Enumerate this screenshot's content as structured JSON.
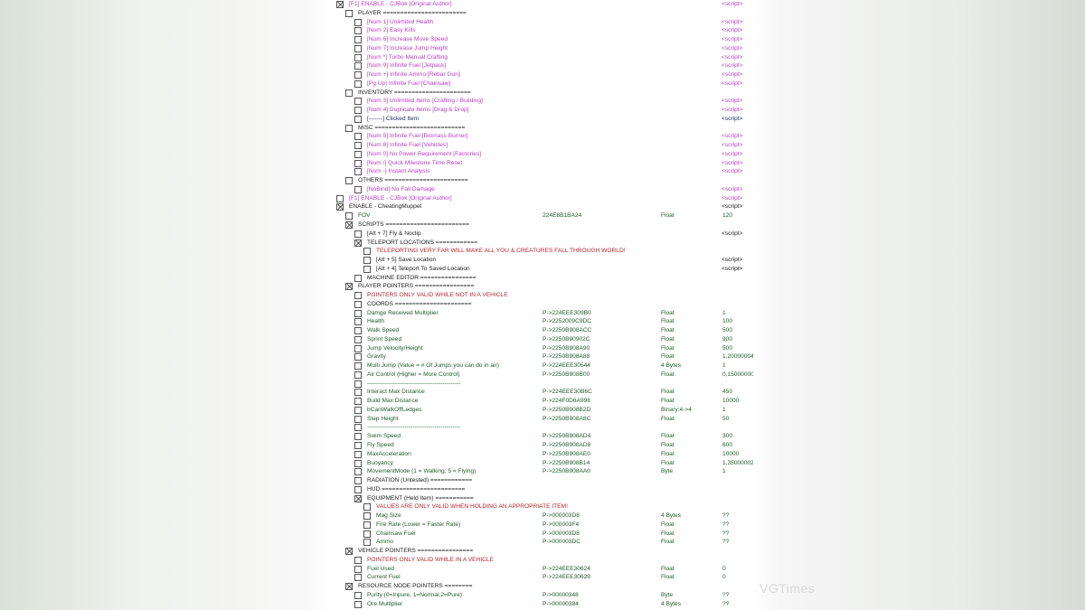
{
  "colors": {
    "purple": "#b83fc4",
    "navy": "#1d2f6e",
    "black": "#1a1a1a",
    "green": "#215a2e",
    "red": "#b3262d"
  },
  "watermark": "VGTimes",
  "rows": [
    {
      "level": 0,
      "checked": true,
      "style": "purple",
      "label": "[F1] ENABLE - CJBok [Original Author]",
      "script": "<script>"
    },
    {
      "level": 1,
      "checked": false,
      "style": "black",
      "label": "PLAYER ========================"
    },
    {
      "level": 2,
      "checked": false,
      "style": "purple",
      "label": "[Num 1] Unlimited Health",
      "script": "<script>"
    },
    {
      "level": 2,
      "checked": false,
      "style": "purple",
      "label": "[Num 2] Easy Kills",
      "script": "<script>"
    },
    {
      "level": 2,
      "checked": false,
      "style": "purple",
      "label": "[Num 6] Increase Move Speed",
      "script": "<script>"
    },
    {
      "level": 2,
      "checked": false,
      "style": "purple",
      "label": "[Num 7] Increase Jump Height",
      "script": "<script>"
    },
    {
      "level": 2,
      "checked": false,
      "style": "purple",
      "label": "[Num *] Turbo Manual Crafting",
      "script": "<script>"
    },
    {
      "level": 2,
      "checked": false,
      "style": "purple",
      "label": "[Num 9] Infinite Fuel [Jetpack]",
      "script": "<script>"
    },
    {
      "level": 2,
      "checked": false,
      "style": "purple",
      "label": "[Num +] Infinite Ammo [Rebar Gun]",
      "script": "<script>"
    },
    {
      "level": 2,
      "checked": false,
      "style": "purple",
      "label": "[Pg Up] Infinite Fuel [Chainsaw]",
      "script": "<script>"
    },
    {
      "level": 1,
      "checked": false,
      "style": "black",
      "label": "INVENTORY ======================"
    },
    {
      "level": 2,
      "checked": false,
      "style": "purple",
      "label": "[Num 3] Unlimited Items [Crafting / Building]",
      "script": "<script>"
    },
    {
      "level": 2,
      "checked": false,
      "style": "purple",
      "label": "[Num 4] Duplicate Items [Drag & Drop]",
      "script": "<script>"
    },
    {
      "level": 2,
      "checked": false,
      "style": "navy",
      "label": "[-------] Clicked Item",
      "script": "<script>"
    },
    {
      "level": 1,
      "checked": false,
      "style": "black",
      "label": "MISC =========================="
    },
    {
      "level": 2,
      "checked": false,
      "style": "purple",
      "label": "[Num 5] Infinite Fuel [Biomass Burner]",
      "script": "<script>"
    },
    {
      "level": 2,
      "checked": false,
      "style": "purple",
      "label": "[Num 8] Infinite Fuel [Vehicles]",
      "script": "<script>"
    },
    {
      "level": 2,
      "checked": false,
      "style": "purple",
      "label": "[Num 0] No Power Requirement [Factories]",
      "script": "<script>"
    },
    {
      "level": 2,
      "checked": false,
      "style": "purple",
      "label": "[Num /] Quick Milestone Time Reset",
      "script": "<script>"
    },
    {
      "level": 2,
      "checked": false,
      "style": "purple",
      "label": "[Num -] Instant Analysis",
      "script": "<script>"
    },
    {
      "level": 1,
      "checked": false,
      "style": "black",
      "label": "OTHERS ========================"
    },
    {
      "level": 2,
      "checked": false,
      "style": "purple",
      "label": "[NoBind] No Fall Damage",
      "script": "<script>"
    },
    {
      "level": 0,
      "checked": false,
      "style": "purple",
      "label": "[F1] ENABLE - CJBok [Original Author]",
      "script": "<script>"
    },
    {
      "level": 0,
      "checked": true,
      "style": "black",
      "label": "ENABLE - CheatingMuppet",
      "script": "<script>"
    },
    {
      "level": 1,
      "checked": false,
      "style": "green",
      "label": "FOV",
      "addr": "224E8B1BA24",
      "type": "Float",
      "value": "120"
    },
    {
      "level": 1,
      "checked": true,
      "style": "black",
      "label": "SCRIPTS ========================"
    },
    {
      "level": 2,
      "checked": false,
      "style": "black",
      "label": "[Alt + 7] Fly & Noclip",
      "script": "<script>"
    },
    {
      "level": 2,
      "checked": true,
      "style": "black",
      "label": "TELEPORT LOCATIONS ============"
    },
    {
      "level": 3,
      "checked": false,
      "style": "red",
      "label": "TELEPORTING VERY FAR WILL MAKE ALL YOU & CREATURES FALL THROUGH WORLD!"
    },
    {
      "level": 3,
      "checked": false,
      "style": "black",
      "label": "[Alt + 5] Save Location",
      "script": "<script>"
    },
    {
      "level": 3,
      "checked": false,
      "style": "black",
      "label": "[Alt + 4] Teleport To Saved Location",
      "script": "<script>"
    },
    {
      "level": 2,
      "checked": false,
      "style": "black",
      "label": "MACHINE EDITOR ================"
    },
    {
      "level": 1,
      "checked": true,
      "style": "black",
      "label": "PLAYER POINTERS ================="
    },
    {
      "level": 2,
      "checked": false,
      "style": "red",
      "label": "POINTERS ONLY VALID WHILE NOT IN A VEHICLE"
    },
    {
      "level": 2,
      "checked": false,
      "style": "black",
      "label": "COORDS ======================"
    },
    {
      "level": 2,
      "checked": false,
      "style": "green",
      "label": "Damge Received Multiplier",
      "addr": "P->224EEE309B0",
      "type": "Float",
      "value": "1"
    },
    {
      "level": 2,
      "checked": false,
      "style": "green",
      "label": "Health",
      "addr": "P->2252009C9DC",
      "type": "Float",
      "value": "100"
    },
    {
      "level": 2,
      "checked": false,
      "style": "green",
      "label": "Walk Speed",
      "addr": "P->2250B908ACC",
      "type": "Float",
      "value": "500"
    },
    {
      "level": 2,
      "checked": false,
      "style": "green",
      "label": "Sprint Speed",
      "addr": "P->2250B90902C",
      "type": "Float",
      "value": "900"
    },
    {
      "level": 2,
      "checked": false,
      "style": "green",
      "label": "Jump Velocity/Height",
      "addr": "P->2250B908A90",
      "type": "Float",
      "value": "500"
    },
    {
      "level": 2,
      "checked": false,
      "style": "green",
      "label": "Gravity",
      "addr": "P->2250B908A88",
      "type": "Float",
      "value": "1,20000004"
    },
    {
      "level": 2,
      "checked": false,
      "style": "green",
      "label": "Multi Jump (Value = # Of Jumps you can do in air)",
      "addr": "P->224EEE30544",
      "type": "4 Bytes",
      "value": "1"
    },
    {
      "level": 2,
      "checked": false,
      "style": "green",
      "label": "Air Control (Higher = More Control)",
      "addr": "P->2250B908B00",
      "type": "Float",
      "value": "0,15000000"
    },
    {
      "level": 2,
      "checked": false,
      "style": "green",
      "label": "-----------------------------------------------"
    },
    {
      "level": 2,
      "checked": false,
      "style": "green",
      "label": "Interact Max Distance",
      "addr": "P->224EEE30B6C",
      "type": "Float",
      "value": "450"
    },
    {
      "level": 2,
      "checked": false,
      "style": "green",
      "label": "Build Max Distance",
      "addr": "P->224F0D6A998",
      "type": "Float",
      "value": "10000"
    },
    {
      "level": 2,
      "checked": false,
      "style": "green",
      "label": "bCanWalkOffLedges",
      "addr": "P->2250B908B2D",
      "type": "Binary:4->4",
      "value": "1"
    },
    {
      "level": 2,
      "checked": false,
      "style": "green",
      "label": "Step Height",
      "addr": "P->2250B908A8C",
      "type": "Float",
      "value": "50"
    },
    {
      "level": 2,
      "checked": false,
      "style": "green",
      "label": "-----------------------------------------------"
    },
    {
      "level": 2,
      "checked": false,
      "style": "green",
      "label": "Swim Speed",
      "addr": "P->2250B908AD4",
      "type": "Float",
      "value": "300"
    },
    {
      "level": 2,
      "checked": false,
      "style": "green",
      "label": "Fly Speed",
      "addr": "P->2250B908AD8",
      "type": "Float",
      "value": "600"
    },
    {
      "level": 2,
      "checked": false,
      "style": "green",
      "label": "MaxAcceleration",
      "addr": "P->2250B908AE0",
      "type": "Float",
      "value": "10000"
    },
    {
      "level": 2,
      "checked": false,
      "style": "green",
      "label": "Buoyancy",
      "addr": "P->2250B908B14",
      "type": "Float",
      "value": "1,35000002"
    },
    {
      "level": 2,
      "checked": false,
      "style": "green",
      "label": "MovementMode (1 = Walking, 5 = Flying)",
      "addr": "P->2250B908AA0",
      "type": "Byte",
      "value": "1"
    },
    {
      "level": 2,
      "checked": false,
      "style": "black",
      "label": "RADIATION (Untested) ============"
    },
    {
      "level": 2,
      "checked": false,
      "style": "black",
      "label": "HUD ========================"
    },
    {
      "level": 2,
      "checked": true,
      "style": "black",
      "label": "EQUIPMENT (Held Item) ==========="
    },
    {
      "level": 3,
      "checked": false,
      "style": "red",
      "label": "VALUES ARE ONLY VALID WHEN HOLDING AN APPROPRIATE ITEM!"
    },
    {
      "level": 3,
      "checked": false,
      "style": "green",
      "label": "Mag Size",
      "addr": "P->000003D8",
      "type": "4 Bytes",
      "value": "??"
    },
    {
      "level": 3,
      "checked": false,
      "style": "green",
      "label": "Fire Rate (Lower = Faster Rate)",
      "addr": "P->000003F4",
      "type": "Float",
      "value": "??"
    },
    {
      "level": 3,
      "checked": false,
      "style": "green",
      "label": "Chainsaw Fuel",
      "addr": "P->000003D8",
      "type": "Float",
      "value": "??"
    },
    {
      "level": 3,
      "checked": false,
      "style": "green",
      "label": "Ammo",
      "addr": "P->000003DC",
      "type": "Float",
      "value": "??"
    },
    {
      "level": 1,
      "checked": true,
      "style": "black",
      "label": "VEHICLE POINTERS ================"
    },
    {
      "level": 2,
      "checked": false,
      "style": "red",
      "label": "POINTERS ONLY VALID WHILE IN A VEHICLE"
    },
    {
      "level": 2,
      "checked": false,
      "style": "green",
      "label": "Fuel Used",
      "addr": "P->224EEE30624",
      "type": "Float",
      "value": "0"
    },
    {
      "level": 2,
      "checked": false,
      "style": "green",
      "label": "Current Fuel",
      "addr": "P->224EEE30628",
      "type": "Float",
      "value": "0"
    },
    {
      "level": 1,
      "checked": true,
      "style": "black",
      "label": "RESOURCE NODE POINTERS ========"
    },
    {
      "level": 2,
      "checked": false,
      "style": "green",
      "label": "Purity (0=Inpure, 1=Normal,2=Pure)",
      "addr": "P->00000348",
      "type": "Byte",
      "value": "??"
    },
    {
      "level": 2,
      "checked": false,
      "style": "green",
      "label": "Ore Multiplier",
      "addr": "P->00000384",
      "type": "4 Bytes",
      "value": "??"
    }
  ]
}
